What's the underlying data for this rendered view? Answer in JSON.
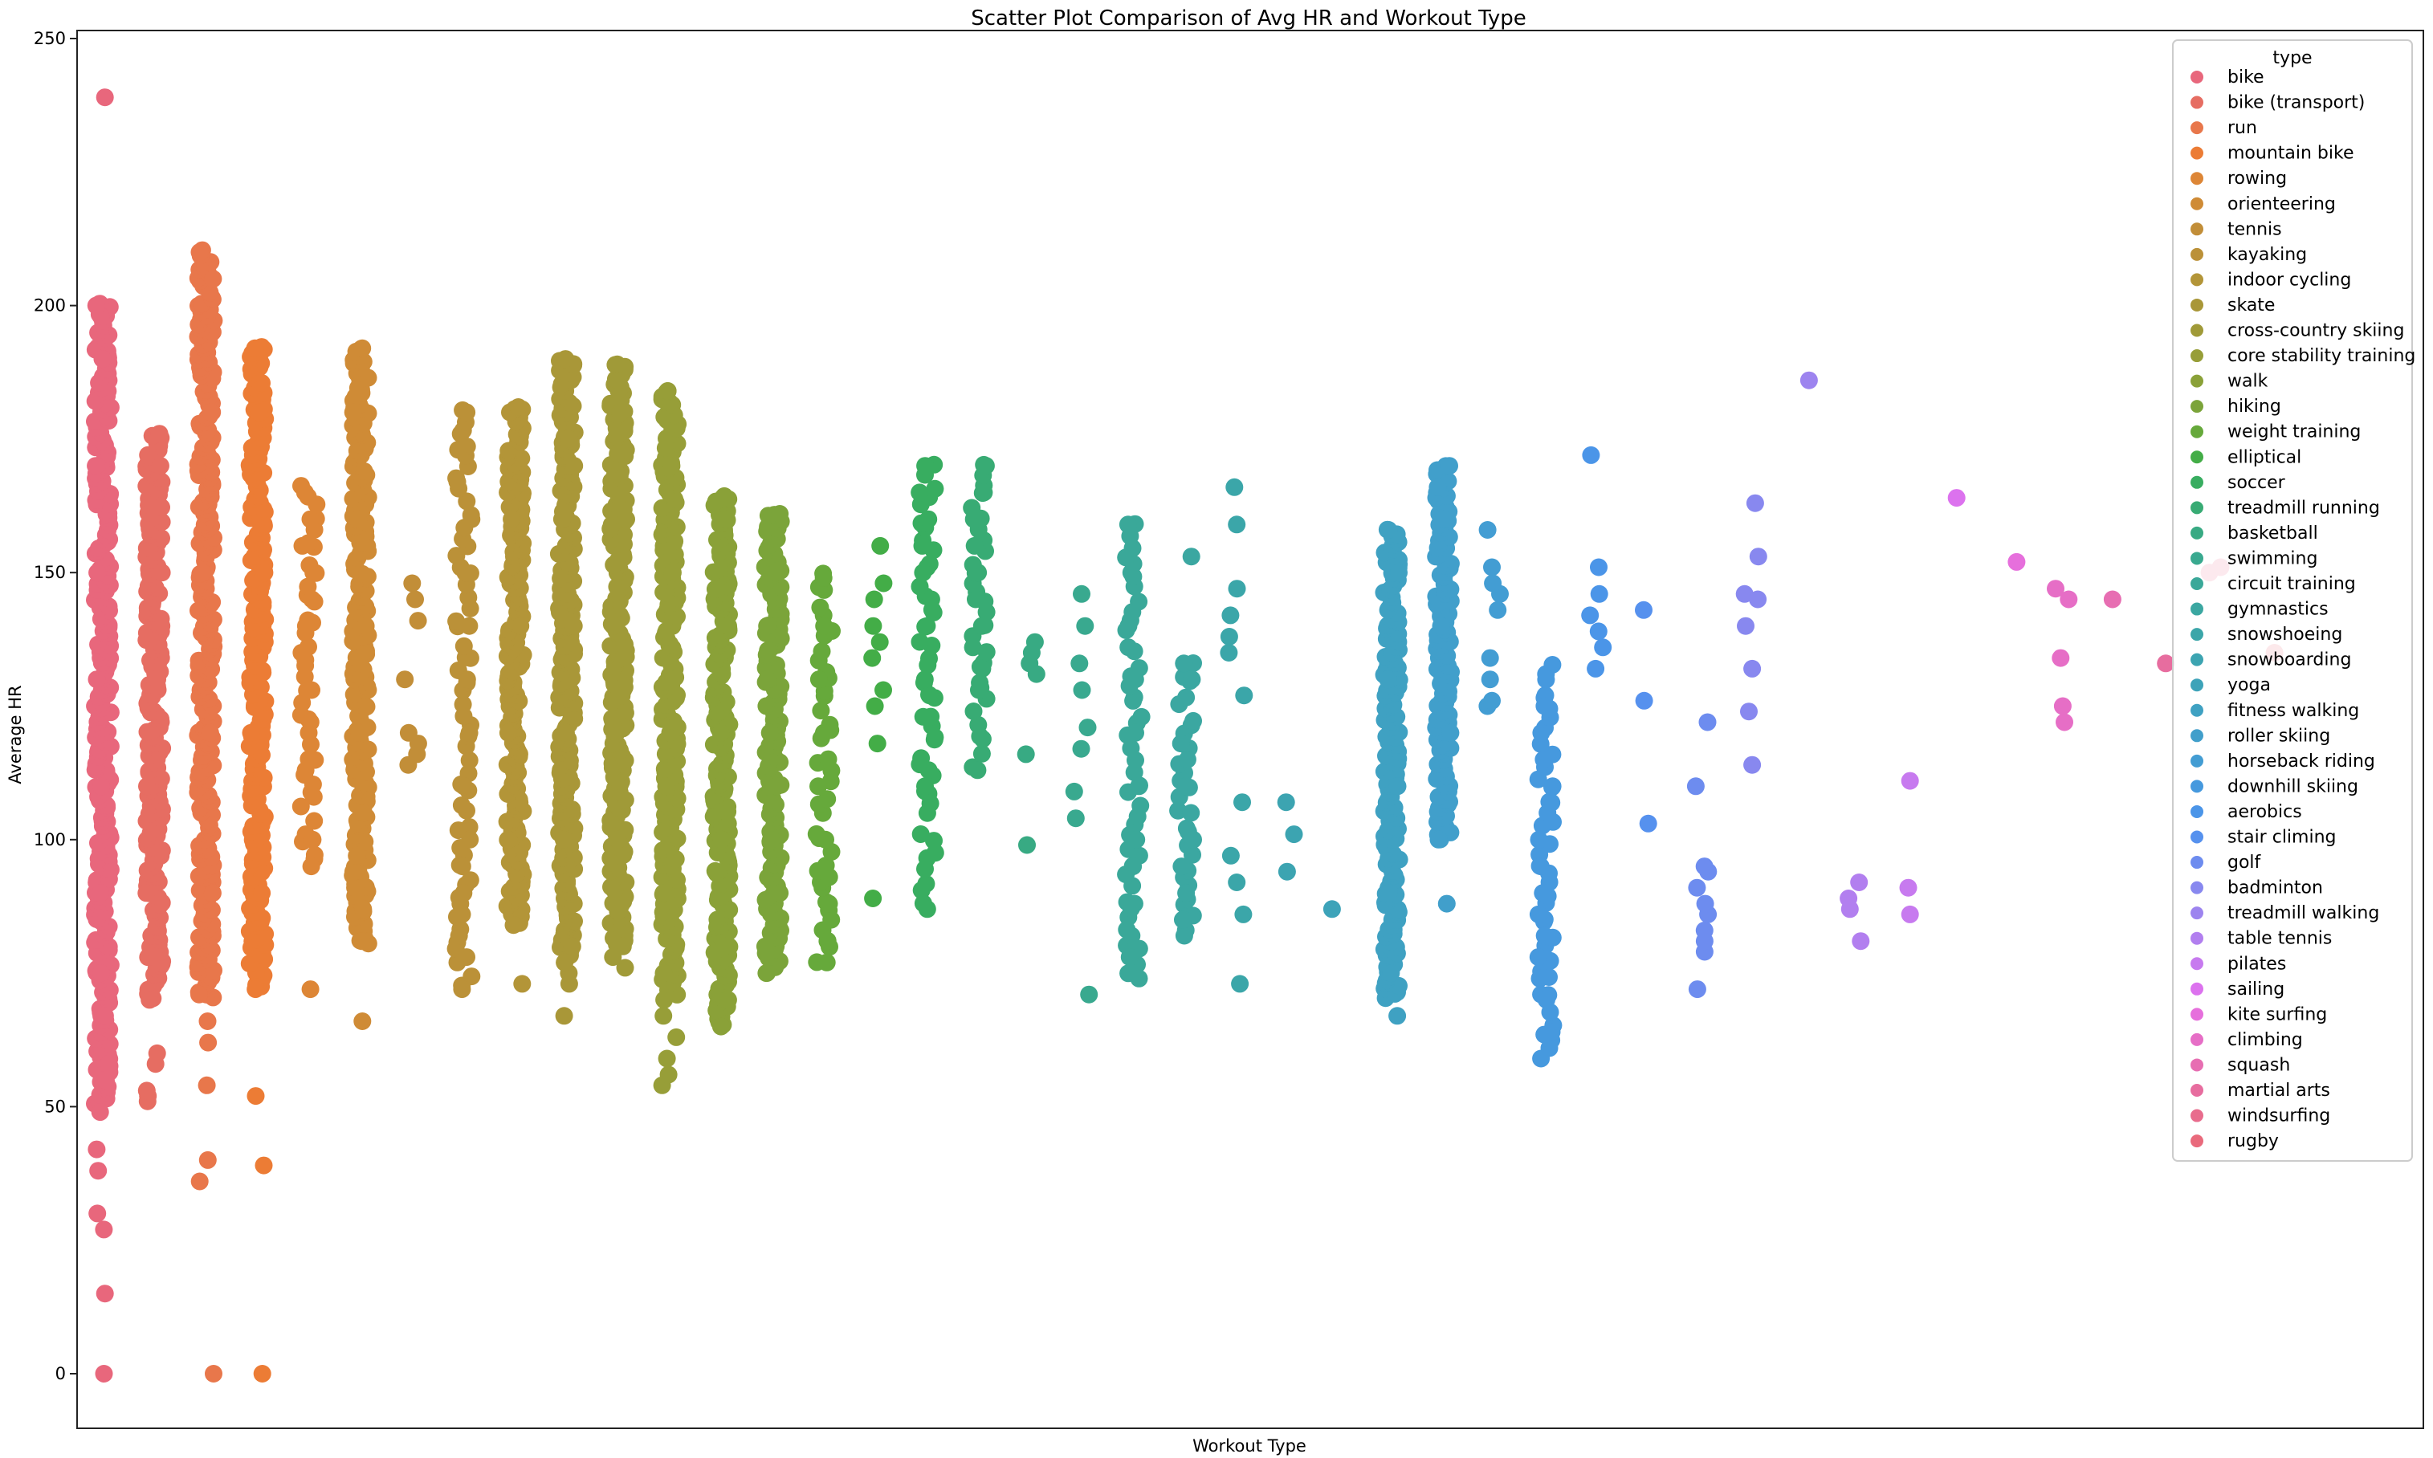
{
  "chart_data": {
    "type": "scatter",
    "title": "Scatter Plot Comparison of Avg HR and Workout Type",
    "xlabel": "Workout Type",
    "ylabel": "Average HR",
    "ylim": [
      -10,
      255
    ],
    "yticks": [
      0,
      50,
      100,
      150,
      200,
      250
    ],
    "grid": false,
    "legend": {
      "title": "type",
      "placement": "top-right"
    },
    "series": [
      {
        "name": "bike",
        "color": "#e8677c",
        "min": 0,
        "max": 239,
        "core": [
          50,
          200
        ],
        "density": "heavy",
        "values": [
          0,
          15,
          27,
          30,
          38,
          42,
          49,
          55,
          58,
          67,
          75,
          90,
          110,
          130,
          150,
          170,
          190,
          198,
          200,
          239
        ]
      },
      {
        "name": "bike (transport)",
        "color": "#e66d62",
        "min": 51,
        "max": 176,
        "core": [
          70,
          176
        ],
        "density": "heavy",
        "values": [
          51,
          52,
          53,
          58,
          60,
          70,
          90,
          110,
          130,
          150,
          170,
          176
        ]
      },
      {
        "name": "run",
        "color": "#e8774b",
        "min": 0,
        "max": 210,
        "core": [
          70,
          210
        ],
        "density": "heavy",
        "values": [
          0,
          36,
          40,
          54,
          62,
          66,
          71,
          90,
          120,
          150,
          180,
          205,
          210
        ]
      },
      {
        "name": "mountain bike",
        "color": "#ec7c35",
        "min": 0,
        "max": 192,
        "core": [
          72,
          192
        ],
        "density": "heavy",
        "values": [
          0,
          39,
          52,
          72,
          90,
          120,
          150,
          180,
          192
        ]
      },
      {
        "name": "rowing",
        "color": "#dd8636",
        "min": 72,
        "max": 165,
        "core": [
          95,
          165
        ],
        "density": "medium",
        "values": [
          72,
          95,
          100,
          108,
          113,
          122,
          128,
          135,
          140,
          145,
          150,
          155,
          160,
          165
        ]
      },
      {
        "name": "orienteering",
        "color": "#cf8b36",
        "min": 66,
        "max": 192,
        "core": [
          80,
          192
        ],
        "density": "heavy",
        "values": [
          66,
          81,
          87,
          91,
          94,
          97,
          105,
          120,
          140,
          160,
          180,
          192
        ]
      },
      {
        "name": "tennis",
        "color": "#c28e38",
        "min": 114,
        "max": 148,
        "core": [
          114,
          148
        ],
        "density": "sparse",
        "values": [
          114,
          116,
          118,
          120,
          130,
          141,
          145,
          148
        ]
      },
      {
        "name": "kayaking",
        "color": "#bb9138",
        "min": 72,
        "max": 180,
        "core": [
          72,
          180
        ],
        "density": "medium",
        "values": [
          72,
          78,
          82,
          86,
          90,
          95,
          100,
          110,
          120,
          130,
          140,
          150,
          160,
          167,
          173,
          180
        ]
      },
      {
        "name": "indoor cycling",
        "color": "#b39538",
        "min": 73,
        "max": 181,
        "core": [
          84,
          181
        ],
        "density": "heavy",
        "values": [
          73,
          84,
          100,
          120,
          140,
          160,
          180,
          181
        ]
      },
      {
        "name": "skate",
        "color": "#a99738",
        "min": 67,
        "max": 190,
        "core": [
          78,
          190
        ],
        "density": "heavy",
        "values": [
          67,
          73,
          75,
          77,
          80,
          100,
          120,
          140,
          160,
          170,
          175,
          190
        ]
      },
      {
        "name": "cross-country skiing",
        "color": "#a09a38",
        "min": 76,
        "max": 189,
        "core": [
          80,
          189
        ],
        "density": "heavy",
        "values": [
          76,
          78,
          80,
          100,
          120,
          140,
          160,
          180,
          189
        ]
      },
      {
        "name": "core stability training",
        "color": "#979e38",
        "min": 54,
        "max": 184,
        "core": [
          70,
          184
        ],
        "density": "heavy",
        "values": [
          54,
          56,
          59,
          63,
          67,
          75,
          90,
          110,
          130,
          150,
          170,
          184
        ]
      },
      {
        "name": "walk",
        "color": "#8aa138",
        "min": 65,
        "max": 164,
        "core": [
          65,
          164
        ],
        "density": "heavy",
        "values": [
          65,
          70,
          80,
          100,
          120,
          140,
          160,
          164
        ]
      },
      {
        "name": "hiking",
        "color": "#7ba43a",
        "min": 75,
        "max": 161,
        "core": [
          75,
          161
        ],
        "density": "heavy",
        "values": [
          75,
          80,
          90,
          100,
          110,
          120,
          130,
          140,
          150,
          161
        ]
      },
      {
        "name": "weight training",
        "color": "#66a93b",
        "min": 77,
        "max": 149,
        "core": [
          77,
          149
        ],
        "density": "medium",
        "values": [
          77,
          81,
          85,
          88,
          93,
          100,
          110,
          120,
          130,
          140,
          149
        ]
      },
      {
        "name": "elliptical",
        "color": "#43ad47",
        "min": 89,
        "max": 155,
        "core": [
          89,
          155
        ],
        "density": "sparse",
        "values": [
          89,
          118,
          125,
          128,
          134,
          137,
          140,
          145,
          148,
          155
        ]
      },
      {
        "name": "soccer",
        "color": "#38ad60",
        "min": 87,
        "max": 170,
        "core": [
          87,
          170
        ],
        "density": "medium",
        "values": [
          87,
          110,
          113,
          123,
          127,
          130,
          140,
          145,
          150,
          155,
          160,
          165,
          170
        ]
      },
      {
        "name": "treadmill running",
        "color": "#38ab74",
        "min": 113,
        "max": 170,
        "core": [
          113,
          170
        ],
        "density": "medium",
        "values": [
          113,
          128,
          132,
          136,
          140,
          145,
          150,
          155,
          160,
          165,
          170
        ]
      },
      {
        "name": "basketball",
        "color": "#38aa83",
        "min": 99,
        "max": 137,
        "core": [
          99,
          137
        ],
        "density": "sparse",
        "values": [
          99,
          116,
          131,
          133,
          135,
          137
        ]
      },
      {
        "name": "swimming",
        "color": "#39a98f",
        "min": 71,
        "max": 146,
        "core": [
          71,
          146
        ],
        "density": "sparse",
        "values": [
          71,
          104,
          109,
          117,
          121,
          128,
          133,
          140,
          146
        ]
      },
      {
        "name": "circuit training",
        "color": "#3aa899",
        "min": 74,
        "max": 159,
        "core": [
          74,
          159
        ],
        "density": "medium",
        "values": [
          74,
          78,
          82,
          88,
          95,
          100,
          110,
          120,
          130,
          140,
          150,
          159
        ]
      },
      {
        "name": "gymnastics",
        "color": "#3ba7a1",
        "min": 82,
        "max": 153,
        "core": [
          82,
          133
        ],
        "density": "medium",
        "values": [
          82,
          85,
          90,
          95,
          100,
          105,
          110,
          115,
          118,
          130,
          133,
          153
        ]
      },
      {
        "name": "snowshoeing",
        "color": "#3ba6a9",
        "min": 73,
        "max": 166,
        "core": [
          73,
          166
        ],
        "density": "sparse",
        "values": [
          73,
          86,
          92,
          97,
          107,
          127,
          135,
          138,
          142,
          147,
          159,
          166
        ]
      },
      {
        "name": "snowboarding",
        "color": "#3ca4b1",
        "min": 94,
        "max": 107,
        "core": [
          94,
          107
        ],
        "density": "sparse",
        "values": [
          94,
          101,
          107
        ]
      },
      {
        "name": "yoga",
        "color": "#3da3b9",
        "min": 87,
        "max": 87,
        "core": [
          87,
          87
        ],
        "density": "sparse",
        "values": [
          87
        ]
      },
      {
        "name": "fitness walking",
        "color": "#3fa1c2",
        "min": 67,
        "max": 158,
        "core": [
          70,
          158
        ],
        "density": "heavy",
        "values": [
          67,
          75,
          90,
          110,
          130,
          150,
          158
        ]
      },
      {
        "name": "roller skiing",
        "color": "#419fcb",
        "min": 88,
        "max": 170,
        "core": [
          100,
          170
        ],
        "density": "heavy",
        "values": [
          88,
          100,
          120,
          140,
          160,
          166,
          170
        ]
      },
      {
        "name": "horseback riding",
        "color": "#439dd3",
        "min": 125,
        "max": 158,
        "core": [
          125,
          158
        ],
        "density": "sparse",
        "values": [
          125,
          126,
          130,
          134,
          143,
          146,
          148,
          151,
          158
        ]
      },
      {
        "name": "downhill skiing",
        "color": "#4699de",
        "min": 59,
        "max": 131,
        "core": [
          59,
          131
        ],
        "density": "medium",
        "values": [
          59,
          64,
          70,
          74,
          78,
          82,
          86,
          90,
          95,
          100,
          105,
          110,
          115,
          120,
          125,
          131
        ]
      },
      {
        "name": "aerobics",
        "color": "#4b95e8",
        "min": 132,
        "max": 172,
        "core": [
          132,
          151
        ],
        "density": "sparse",
        "values": [
          132,
          136,
          139,
          142,
          146,
          151,
          172
        ]
      },
      {
        "name": "stair climing",
        "color": "#5691ee",
        "min": 103,
        "max": 143,
        "core": [
          103,
          143
        ],
        "density": "sparse",
        "values": [
          103,
          126,
          143
        ]
      },
      {
        "name": "golf",
        "color": "#6d8cef",
        "min": 72,
        "max": 122,
        "core": [
          72,
          122
        ],
        "density": "sparse",
        "values": [
          72,
          79,
          81,
          83,
          86,
          88,
          91,
          94,
          95,
          110,
          122
        ]
      },
      {
        "name": "badminton",
        "color": "#8888ef",
        "min": 114,
        "max": 163,
        "core": [
          114,
          163
        ],
        "density": "sparse",
        "values": [
          114,
          124,
          132,
          140,
          145,
          146,
          153,
          163
        ]
      },
      {
        "name": "treadmill walking",
        "color": "#9d84ef",
        "min": 186,
        "max": 186,
        "core": [
          186,
          186
        ],
        "density": "sparse",
        "values": [
          186
        ]
      },
      {
        "name": "table tennis",
        "color": "#b27fef",
        "min": 81,
        "max": 92,
        "core": [
          81,
          92
        ],
        "density": "sparse",
        "values": [
          81,
          87,
          89,
          92
        ]
      },
      {
        "name": "pilates",
        "color": "#c77aef",
        "min": 86,
        "max": 111,
        "core": [
          86,
          111
        ],
        "density": "sparse",
        "values": [
          86,
          91,
          111
        ]
      },
      {
        "name": "sailing",
        "color": "#dc72ee",
        "min": 164,
        "max": 164,
        "core": [
          164,
          164
        ],
        "density": "sparse",
        "values": [
          164
        ]
      },
      {
        "name": "kite surfing",
        "color": "#e66fdc",
        "min": 152,
        "max": 152,
        "core": [
          152,
          152
        ],
        "density": "sparse",
        "values": [
          152
        ]
      },
      {
        "name": "climbing",
        "color": "#e66ec6",
        "min": 122,
        "max": 147,
        "core": [
          122,
          147
        ],
        "density": "sparse",
        "values": [
          122,
          125,
          134,
          145,
          147
        ]
      },
      {
        "name": "squash",
        "color": "#e76eb2",
        "min": 145,
        "max": 145,
        "core": [
          145,
          145
        ],
        "density": "sparse",
        "values": [
          145
        ]
      },
      {
        "name": "martial arts",
        "color": "#e76d9f",
        "min": 133,
        "max": 133,
        "core": [
          133,
          133
        ],
        "density": "sparse",
        "values": [
          133
        ]
      },
      {
        "name": "windsurfing",
        "color": "#e86c8d",
        "min": 150,
        "max": 151,
        "core": [
          150,
          151
        ],
        "density": "sparse",
        "values": [
          150,
          151
        ]
      },
      {
        "name": "rugby",
        "color": "#e96a7c",
        "min": 135,
        "max": 135,
        "core": [
          135,
          135
        ],
        "density": "sparse",
        "values": [
          135
        ]
      }
    ]
  }
}
